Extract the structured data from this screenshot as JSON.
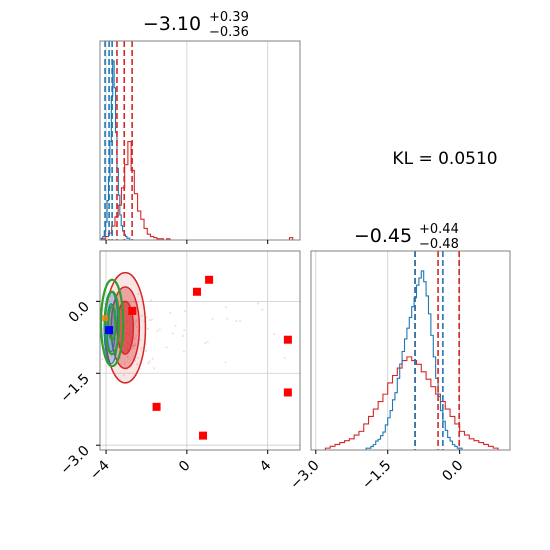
{
  "chart_data": {
    "type": "corner",
    "kl_label": "KL = 0.0510",
    "colors": {
      "reference": "#1f77b4",
      "posterior": "#d62728",
      "contour_green": "#2ca02c",
      "marker_red": "#ff0000",
      "marker_blue": "#0000ff"
    },
    "param1": {
      "title_main": "−3.10",
      "title_plus": "+0.39",
      "title_minus": "−0.36",
      "xlim": [
        -4.3,
        5.6
      ],
      "quantiles_red": [
        -3.46,
        -3.1,
        -2.71
      ],
      "quantiles_blue": [
        -4.05,
        -3.85,
        -3.7
      ],
      "ticks": [
        -4,
        0,
        4
      ],
      "tick_labels": [
        "−4",
        "0",
        "4"
      ]
    },
    "param2": {
      "title_main": "−0.45",
      "title_plus": "+0.44",
      "title_minus": "−0.48",
      "xlim": [
        -3.1,
        1.05
      ],
      "ylim": [
        -3.1,
        1.05
      ],
      "quantiles_red": [
        -0.93,
        -0.45,
        -0.01
      ],
      "quantiles_blue": [
        -0.93,
        -0.35
      ],
      "ticks": [
        -3.0,
        -1.5,
        0.0
      ],
      "tick_labels": [
        "−3.0",
        "−1.5",
        "0.0"
      ]
    },
    "hist1_blue": {
      "x_start": -4.3,
      "bin_width": 0.07,
      "counts": [
        0,
        1,
        2,
        5,
        10,
        22,
        35,
        55,
        80,
        100,
        85,
        60,
        40,
        25,
        14,
        8,
        5,
        3,
        2,
        1,
        1,
        0
      ]
    },
    "hist1_red": {
      "x_start": -4.2,
      "bin_width": 0.16,
      "counts": [
        1,
        3,
        6,
        12,
        20,
        30,
        45,
        65,
        85,
        60,
        40,
        25,
        18,
        10,
        5,
        3,
        2,
        1,
        1,
        0,
        1,
        0,
        0,
        0,
        0,
        0,
        0,
        0,
        0,
        0,
        0,
        0,
        0,
        0,
        0,
        0,
        0,
        0,
        0,
        0,
        0,
        0,
        0,
        0,
        0,
        0,
        0,
        0,
        0,
        0,
        0,
        0,
        0,
        0,
        0,
        0,
        0,
        0,
        2,
        0,
        0,
        0
      ]
    },
    "hist2_blue": {
      "x_start": -2.0,
      "bin_width": 0.05,
      "counts": [
        0,
        1,
        1,
        2,
        3,
        5,
        6,
        8,
        10,
        14,
        18,
        22,
        28,
        32,
        40,
        48,
        55,
        62,
        68,
        74,
        80,
        85,
        92,
        96,
        100,
        94,
        86,
        76,
        64,
        52,
        40,
        30,
        22,
        16,
        11,
        7,
        5,
        3,
        2,
        1,
        1,
        0
      ]
    },
    "hist2_red": {
      "x_start": -2.8,
      "bin_width": 0.1,
      "counts": [
        1,
        2,
        3,
        4,
        5,
        6,
        8,
        10,
        14,
        18,
        22,
        26,
        30,
        36,
        40,
        44,
        48,
        50,
        48,
        46,
        42,
        38,
        34,
        30,
        26,
        22,
        18,
        14,
        10,
        8,
        6,
        5,
        4,
        3,
        2,
        1
      ]
    },
    "scatter_red_markers": [
      {
        "x": -2.7,
        "y": -0.2
      },
      {
        "x": 0.5,
        "y": 0.2
      },
      {
        "x": 1.1,
        "y": 0.45
      },
      {
        "x": 5.0,
        "y": -0.8
      },
      {
        "x": 5.0,
        "y": -1.9
      },
      {
        "x": -1.5,
        "y": -2.2
      },
      {
        "x": 0.8,
        "y": -2.8
      }
    ],
    "scatter_blue_marker": {
      "x": -3.85,
      "y": -0.6
    }
  }
}
